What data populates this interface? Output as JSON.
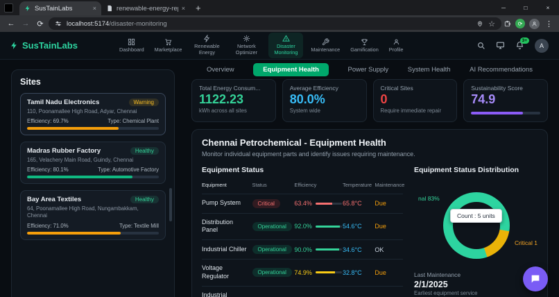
{
  "browser": {
    "tabs": [
      {
        "title": "SusTainLabs"
      },
      {
        "title": "renewable-energy-report (16).."
      }
    ],
    "icons": {
      "close_tab": "×",
      "new_tab": "+",
      "minimize": "─",
      "maximize": "□",
      "close": "×",
      "back": "←",
      "forward": "→",
      "reload": "⟳",
      "star": "☆",
      "menu": "⋮",
      "update": "⟳"
    },
    "url_host": "localhost:5174",
    "url_path": "/disaster-monitoring"
  },
  "appbar": {
    "brand": "SusTainLabs",
    "nav": [
      {
        "label": "Dashboard"
      },
      {
        "label": "Marketplace"
      },
      {
        "label": "Renewable Energy"
      },
      {
        "label": "Network Optimizer"
      },
      {
        "label": "Disaster Monitoring"
      },
      {
        "label": "Maintenance"
      },
      {
        "label": "Gamification"
      },
      {
        "label": "Profile"
      }
    ],
    "notification_badge": "3+",
    "avatar": "A"
  },
  "subtabs": [
    {
      "label": "Overview"
    },
    {
      "label": "Equipment Health"
    },
    {
      "label": "Power Supply"
    },
    {
      "label": "System Health"
    },
    {
      "label": "AI Recommendations"
    }
  ],
  "sites": {
    "title": "Sites",
    "items": [
      {
        "name": "Tamil Nadu Electronics",
        "status": "Warning",
        "status_color": "#fbbf24",
        "status_bg": "rgba(251,191,36,0.13)",
        "address": "110, Poonamallee High Road, Adyar, Chennai",
        "efficiency": "Efficiency: 69.7%",
        "type": "Type: Chemical Plant",
        "pct": 69.7,
        "bar_color": "#f59e0b"
      },
      {
        "name": "Madras Rubber Factory",
        "status": "Healthy",
        "status_color": "#34d399",
        "status_bg": "rgba(52,211,153,0.13)",
        "address": "165, Velachery Main Road, Guindy, Chennai",
        "efficiency": "Efficiency: 80.1%",
        "type": "Type: Automotive Factory",
        "pct": 80.1,
        "bar_color": "#10b981"
      },
      {
        "name": "Bay Area Textiles",
        "status": "Healthy",
        "status_color": "#34d399",
        "status_bg": "rgba(52,211,153,0.13)",
        "address": "64, Poonamallee High Road, Nungambakkam, Chennai",
        "efficiency": "Efficiency: 71.0%",
        "type": "Type: Textile Mill",
        "pct": 71.0,
        "bar_color": "#f59e0b"
      }
    ]
  },
  "stats": [
    {
      "title": "Total Energy Consum...",
      "value": "1122.23",
      "sub": "kWh across all sites",
      "color": "#34d399"
    },
    {
      "title": "Average Efficiency",
      "value": "80.0%",
      "sub": "System wide",
      "color": "#38bdf8"
    },
    {
      "title": "Critical Sites",
      "value": "0",
      "sub": "Require immediate repair",
      "color": "#ef4444"
    },
    {
      "title": "Sustainability Score",
      "value": "74.9",
      "color": "#a78bfa",
      "pct": 74.9,
      "bar_color": "#8b5cf6"
    }
  ],
  "main": {
    "title": "Chennai Petrochemical - Equipment Health",
    "subtitle": "Monitor individual equipment parts and identify issues requiring maintenance.",
    "table_title": "Equipment Status",
    "columns": [
      "Equipment",
      "Status",
      "Efficiency",
      "Temperature",
      "Maintenance"
    ],
    "rows": [
      {
        "equipment": "Pump System",
        "status": "Critical",
        "status_color": "#f87171",
        "status_bg": "rgba(239,68,68,0.16)",
        "efficiency": "63.4%",
        "eff_pct": 63.4,
        "eff_color": "#f87171",
        "temperature": "65.8°C",
        "temp_color": "#f87171",
        "maintenance": "Due",
        "maint_color": "#f59e0b"
      },
      {
        "equipment": "Distribution Panel",
        "status": "Operational",
        "status_color": "#34d399",
        "status_bg": "rgba(16,185,129,0.16)",
        "efficiency": "92.0%",
        "eff_pct": 92,
        "eff_color": "#34d399",
        "temperature": "54.6°C",
        "temp_color": "#38bdf8",
        "maintenance": "Due",
        "maint_color": "#f59e0b"
      },
      {
        "equipment": "Industrial Chiller",
        "status": "Operational",
        "status_color": "#34d399",
        "status_bg": "rgba(16,185,129,0.16)",
        "efficiency": "90.0%",
        "eff_pct": 90,
        "eff_color": "#34d399",
        "temperature": "34.6°C",
        "temp_color": "#38bdf8",
        "maintenance": "OK",
        "maint_color": "#cbd5e1"
      },
      {
        "equipment": "Voltage Regulator",
        "status": "Operational",
        "status_color": "#34d399",
        "status_bg": "rgba(16,185,129,0.16)",
        "efficiency": "74.9%",
        "eff_pct": 74.9,
        "eff_color": "#facc15",
        "temperature": "32.8°C",
        "temp_color": "#38bdf8",
        "maintenance": "Due",
        "maint_color": "#f59e0b"
      },
      {
        "equipment": "Industrial"
      }
    ]
  },
  "distribution": {
    "title": "Equipment Status Distribution",
    "label_left": "nal 83%",
    "label_right": "Critical 1",
    "tooltip": "Count : 5 units",
    "chart_data": {
      "type": "pie",
      "start_deg": 100,
      "segments": [
        {
          "label": "Critical",
          "pct": 17,
          "color": "#eab308"
        },
        {
          "label": "Operational",
          "pct": 83,
          "color": "#2dd4a0"
        }
      ]
    }
  },
  "maintenance": {
    "title": "Last Maintenance",
    "date": "2/1/2025",
    "sub": "Earliest equipment service"
  }
}
